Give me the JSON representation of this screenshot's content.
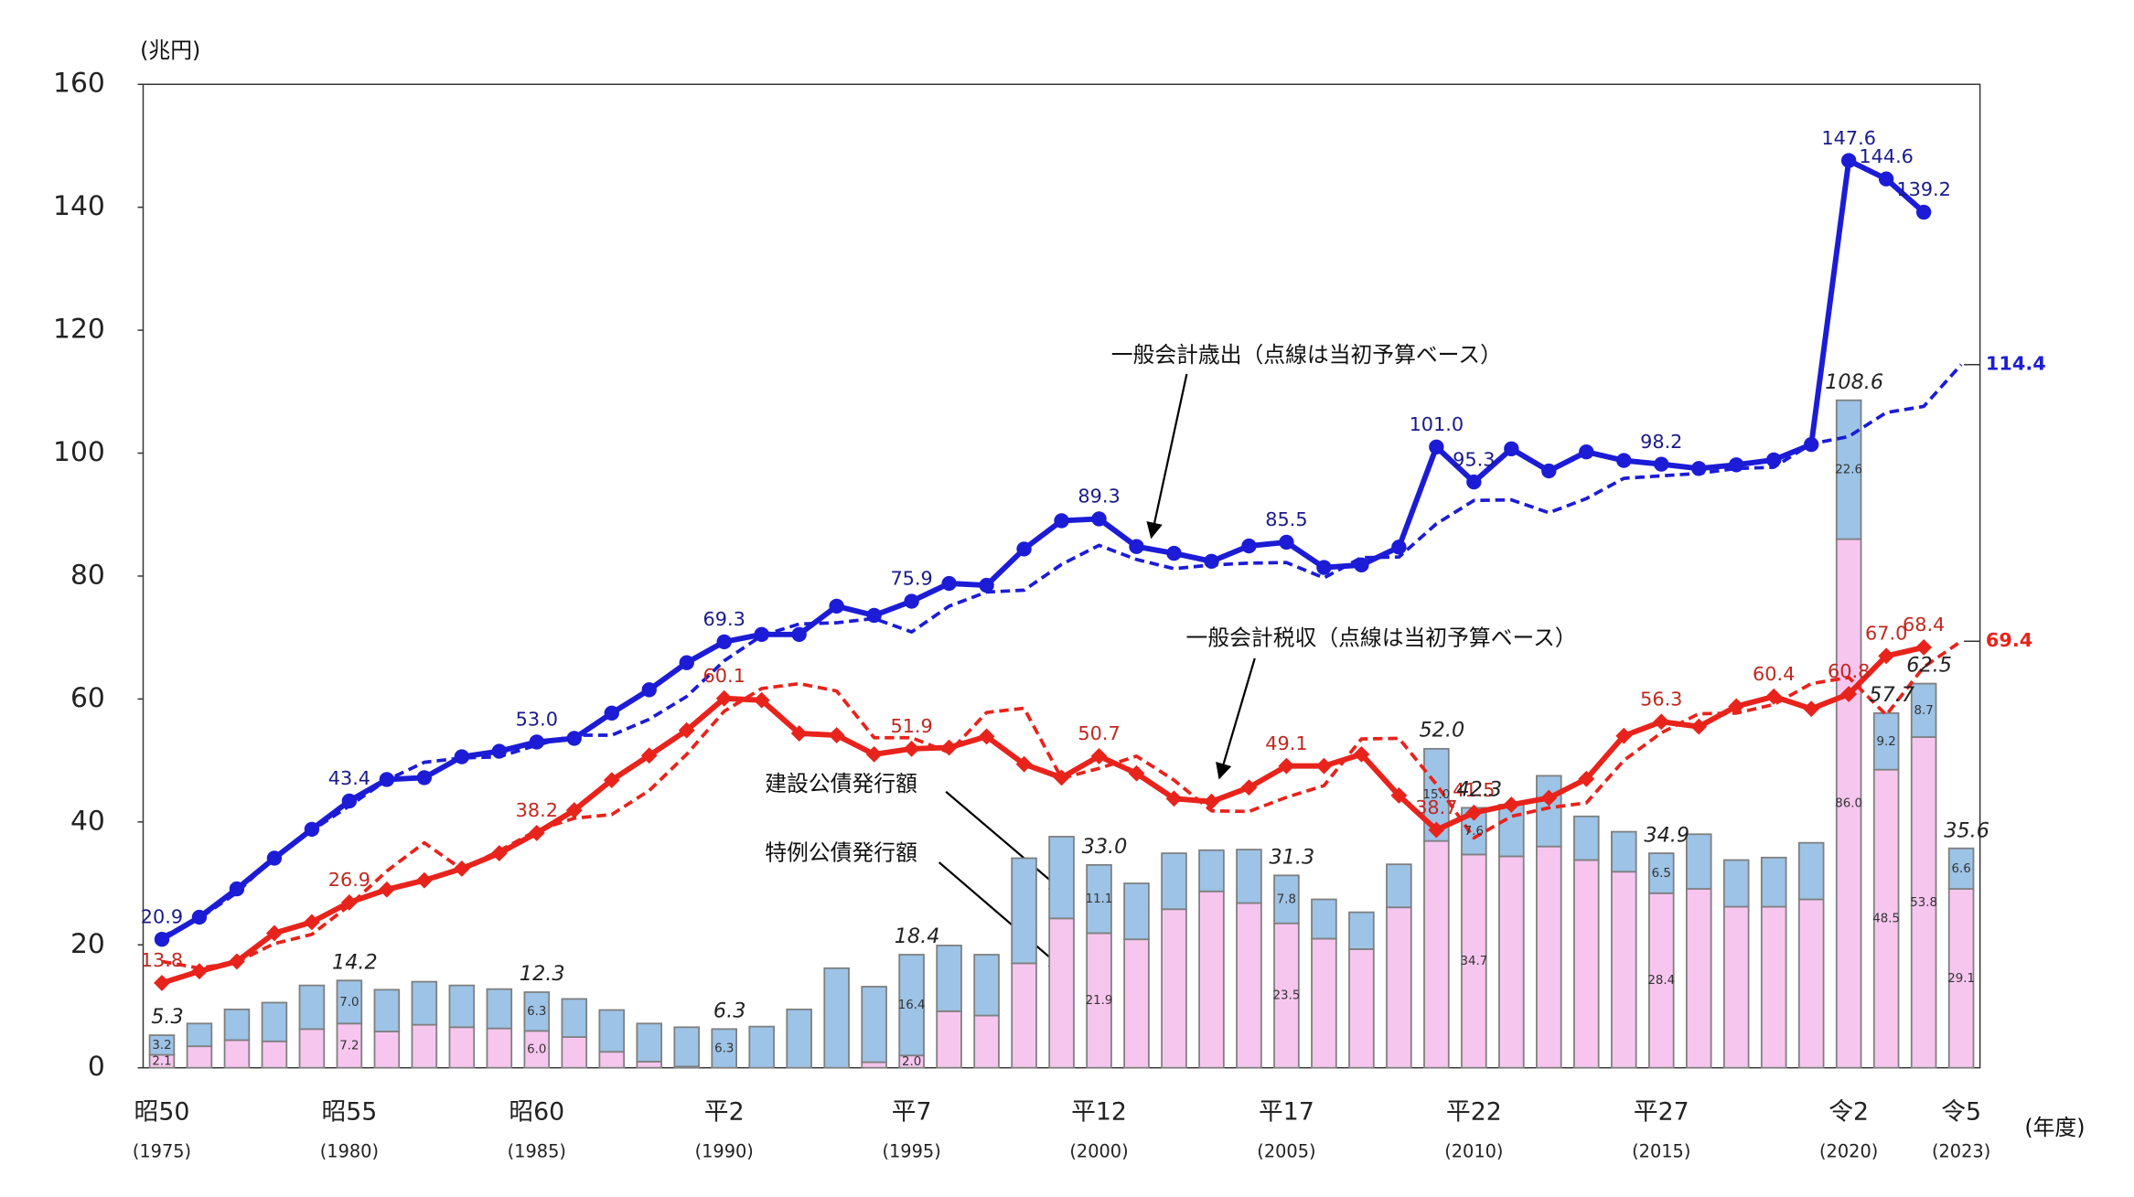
{
  "chart_data": {
    "type": "bar",
    "y_unit": "(兆円)",
    "x_unit": "(年度)",
    "categories": [
      "昭50",
      null,
      null,
      null,
      null,
      "昭55",
      null,
      null,
      null,
      null,
      "昭60",
      null,
      null,
      null,
      null,
      "平2",
      null,
      null,
      null,
      null,
      "平7",
      null,
      null,
      null,
      null,
      "平12",
      null,
      null,
      null,
      null,
      "平17",
      null,
      null,
      null,
      null,
      "平22",
      null,
      null,
      null,
      null,
      "平27",
      null,
      null,
      null,
      null,
      "令2",
      null,
      null,
      "令5"
    ],
    "category_years": [
      "(1975)",
      null,
      null,
      null,
      null,
      "(1980)",
      null,
      null,
      null,
      null,
      "(1985)",
      null,
      null,
      null,
      null,
      "(1990)",
      null,
      null,
      null,
      null,
      "(1995)",
      null,
      null,
      null,
      null,
      "(2000)",
      null,
      null,
      null,
      null,
      "(2005)",
      null,
      null,
      null,
      null,
      "(2010)",
      null,
      null,
      null,
      null,
      "(2015)",
      null,
      null,
      null,
      null,
      "(2020)",
      null,
      null,
      "(2023)"
    ],
    "ylim": [
      0,
      160
    ],
    "yticks": [
      0,
      20,
      40,
      60,
      80,
      100,
      120,
      140,
      160
    ],
    "annotations": [
      "一般会計歳出（点線は当初予算ベース）",
      "一般会計税収（点線は当初予算ベース）",
      "建設公債発行額",
      "特例公債発行額"
    ],
    "series": [
      {
        "name": "特例公債発行額",
        "type": "bar",
        "color": "#f7c6ef",
        "values": [
          2.1,
          3.5,
          4.5,
          4.3,
          6.3,
          7.2,
          5.9,
          7.0,
          6.6,
          6.4,
          6.0,
          5.0,
          2.6,
          1.0,
          0.2,
          0,
          0,
          0,
          0,
          0.9,
          2.0,
          9.2,
          8.5,
          17.0,
          24.3,
          21.9,
          20.9,
          25.8,
          28.7,
          26.8,
          23.5,
          21.0,
          19.3,
          26.1,
          36.9,
          34.7,
          34.4,
          36.0,
          33.8,
          31.9,
          28.4,
          29.1,
          26.2,
          26.2,
          27.4,
          86.0,
          48.5,
          53.8,
          29.1
        ],
        "value_labels": [
          "2.1",
          null,
          null,
          null,
          null,
          "7.2",
          null,
          null,
          null,
          null,
          "6.0",
          null,
          null,
          null,
          null,
          null,
          null,
          null,
          null,
          null,
          "2.0",
          null,
          null,
          null,
          null,
          "21.9",
          null,
          null,
          null,
          null,
          "23.5",
          null,
          null,
          null,
          null,
          "34.7",
          null,
          null,
          null,
          null,
          "28.4",
          null,
          null,
          null,
          null,
          "86.0",
          "48.5",
          "53.8",
          "29.1"
        ]
      },
      {
        "name": "建設公債発行額",
        "type": "bar",
        "color": "#9dc3e6",
        "values": [
          3.2,
          3.7,
          5.0,
          6.3,
          7.1,
          7.0,
          6.8,
          7.0,
          6.8,
          6.4,
          6.3,
          6.2,
          6.8,
          6.2,
          6.4,
          6.3,
          6.7,
          9.5,
          16.2,
          12.3,
          16.4,
          10.7,
          9.9,
          17.1,
          13.3,
          11.1,
          9.1,
          9.1,
          6.7,
          8.7,
          7.8,
          6.4,
          6.0,
          7.0,
          15.0,
          7.6,
          8.4,
          11.5,
          7.1,
          6.5,
          6.5,
          8.9,
          7.6,
          8.0,
          9.2,
          22.6,
          9.2,
          8.7,
          6.6
        ],
        "value_labels": [
          "3.2",
          null,
          null,
          null,
          null,
          "7.0",
          null,
          null,
          null,
          null,
          "6.3",
          null,
          null,
          null,
          null,
          "6.3",
          null,
          null,
          null,
          null,
          "16.4",
          null,
          null,
          null,
          null,
          "11.1",
          null,
          null,
          null,
          null,
          "7.8",
          null,
          null,
          null,
          "15.0",
          "7.6",
          null,
          null,
          null,
          null,
          "6.5",
          null,
          null,
          null,
          null,
          "22.6",
          "9.2",
          "8.7",
          "6.6"
        ]
      },
      {
        "name": "一般会計歳出",
        "type": "line",
        "style": "solid",
        "marker": "circle",
        "color": "#1c1cd6",
        "values": [
          20.9,
          24.5,
          29.1,
          34.1,
          38.8,
          43.4,
          46.9,
          47.2,
          50.6,
          51.5,
          53.0,
          53.6,
          57.7,
          61.5,
          65.9,
          69.3,
          70.5,
          70.5,
          75.1,
          73.6,
          75.9,
          78.8,
          78.5,
          84.4,
          89.0,
          89.3,
          84.8,
          83.7,
          82.4,
          84.9,
          85.5,
          81.4,
          81.8,
          84.7,
          101.0,
          95.3,
          100.7,
          97.1,
          100.2,
          98.8,
          98.2,
          97.5,
          98.1,
          98.9,
          101.4,
          147.6,
          144.6,
          139.2,
          null
        ],
        "value_labels": [
          "20.9",
          null,
          null,
          null,
          null,
          "43.4",
          null,
          null,
          null,
          null,
          "53.0",
          null,
          null,
          null,
          null,
          "69.3",
          null,
          null,
          null,
          null,
          "75.9",
          null,
          null,
          null,
          null,
          "89.3",
          null,
          null,
          null,
          null,
          "85.5",
          null,
          null,
          null,
          "101.0",
          "95.3",
          null,
          null,
          null,
          null,
          "98.2",
          null,
          null,
          null,
          null,
          "147.6",
          "144.6",
          "139.2",
          null
        ]
      },
      {
        "name": "一般会計歳出（当初予算）",
        "type": "line",
        "style": "dashed",
        "color": "#1c1cd6",
        "values": [
          21.3,
          24.3,
          28.5,
          34.3,
          38.6,
          42.6,
          46.8,
          49.7,
          50.4,
          50.6,
          52.5,
          54.1,
          54.1,
          56.7,
          60.4,
          66.2,
          70.3,
          72.2,
          72.4,
          73.1,
          70.9,
          75.1,
          77.4,
          77.7,
          81.9,
          85.0,
          82.7,
          81.2,
          81.8,
          82.1,
          82.2,
          79.7,
          83.0,
          83.1,
          88.5,
          92.3,
          92.4,
          90.3,
          92.6,
          95.9,
          96.3,
          96.7,
          97.5,
          97.7,
          101.5,
          102.7,
          106.6,
          107.6,
          114.4
        ],
        "value_labels": [
          null,
          null,
          null,
          null,
          null,
          null,
          null,
          null,
          null,
          null,
          null,
          null,
          null,
          null,
          null,
          null,
          null,
          null,
          null,
          null,
          null,
          null,
          null,
          null,
          null,
          null,
          null,
          null,
          null,
          null,
          null,
          null,
          null,
          null,
          null,
          null,
          null,
          null,
          null,
          null,
          null,
          null,
          null,
          null,
          null,
          null,
          null,
          null,
          "114.4"
        ]
      },
      {
        "name": "一般会計税収",
        "type": "line",
        "style": "solid",
        "marker": "diamond",
        "color": "#e8231c",
        "values": [
          13.8,
          15.7,
          17.3,
          21.9,
          23.7,
          26.9,
          29.0,
          30.5,
          32.4,
          34.9,
          38.2,
          41.9,
          46.8,
          50.8,
          54.9,
          60.1,
          59.8,
          54.4,
          54.1,
          51.0,
          51.9,
          52.1,
          53.9,
          49.4,
          47.2,
          50.7,
          47.9,
          43.8,
          43.3,
          45.6,
          49.1,
          49.1,
          51.0,
          44.3,
          38.7,
          41.5,
          42.8,
          43.9,
          47.0,
          54.0,
          56.3,
          55.5,
          58.8,
          60.4,
          58.4,
          60.8,
          67.0,
          68.4,
          null
        ],
        "value_labels": [
          "13.8",
          null,
          null,
          null,
          null,
          "26.9",
          null,
          null,
          null,
          null,
          "38.2",
          null,
          null,
          null,
          null,
          "60.1",
          null,
          null,
          null,
          null,
          "51.9",
          null,
          null,
          null,
          null,
          "50.7",
          null,
          null,
          null,
          null,
          "49.1",
          null,
          null,
          null,
          "38.7",
          "41.5",
          null,
          null,
          null,
          null,
          "56.3",
          null,
          null,
          "60.4",
          null,
          "60.8",
          "67.0",
          "68.4",
          null
        ]
      },
      {
        "name": "一般会計税収（当初予算）",
        "type": "line",
        "style": "dashed",
        "color": "#e8231c",
        "values": [
          17.3,
          16.2,
          17.2,
          20.2,
          21.7,
          26.4,
          32.0,
          36.6,
          32.3,
          35.3,
          38.6,
          40.6,
          41.2,
          45.1,
          51.0,
          58.0,
          61.7,
          62.5,
          61.3,
          53.7,
          53.7,
          51.3,
          57.8,
          58.5,
          47.1,
          48.7,
          50.7,
          46.8,
          41.8,
          41.7,
          44.0,
          45.9,
          53.5,
          53.6,
          46.1,
          37.4,
          40.9,
          42.3,
          43.1,
          50.0,
          54.5,
          57.6,
          57.7,
          59.1,
          62.5,
          63.5,
          57.4,
          65.2,
          69.4
        ],
        "value_labels": [
          null,
          null,
          null,
          null,
          null,
          null,
          null,
          null,
          null,
          null,
          null,
          null,
          null,
          null,
          null,
          null,
          null,
          null,
          null,
          null,
          null,
          null,
          null,
          null,
          null,
          null,
          null,
          null,
          null,
          null,
          null,
          null,
          null,
          null,
          null,
          null,
          null,
          null,
          null,
          null,
          null,
          null,
          null,
          null,
          null,
          null,
          null,
          null,
          "69.4"
        ]
      }
    ],
    "bar_totals": [
      5.3,
      null,
      null,
      null,
      null,
      14.2,
      null,
      null,
      null,
      null,
      12.3,
      null,
      null,
      null,
      null,
      6.3,
      null,
      null,
      null,
      null,
      18.4,
      null,
      null,
      null,
      null,
      33.0,
      null,
      null,
      null,
      null,
      31.3,
      null,
      null,
      null,
      52.0,
      42.3,
      null,
      null,
      null,
      null,
      34.9,
      null,
      null,
      null,
      null,
      108.6,
      57.7,
      62.5,
      35.6
    ],
    "bar_total_labels": [
      "5.3",
      null,
      null,
      null,
      null,
      "14.2",
      null,
      null,
      null,
      null,
      "12.3",
      null,
      null,
      null,
      null,
      "6.3",
      null,
      null,
      null,
      null,
      "18.4",
      null,
      null,
      null,
      null,
      "33.0",
      null,
      null,
      null,
      null,
      "31.3",
      null,
      null,
      null,
      "52.0",
      "42.3",
      null,
      null,
      null,
      null,
      "34.9",
      null,
      null,
      null,
      null,
      "108.6",
      "57.7",
      "62.5",
      "35.6"
    ]
  }
}
